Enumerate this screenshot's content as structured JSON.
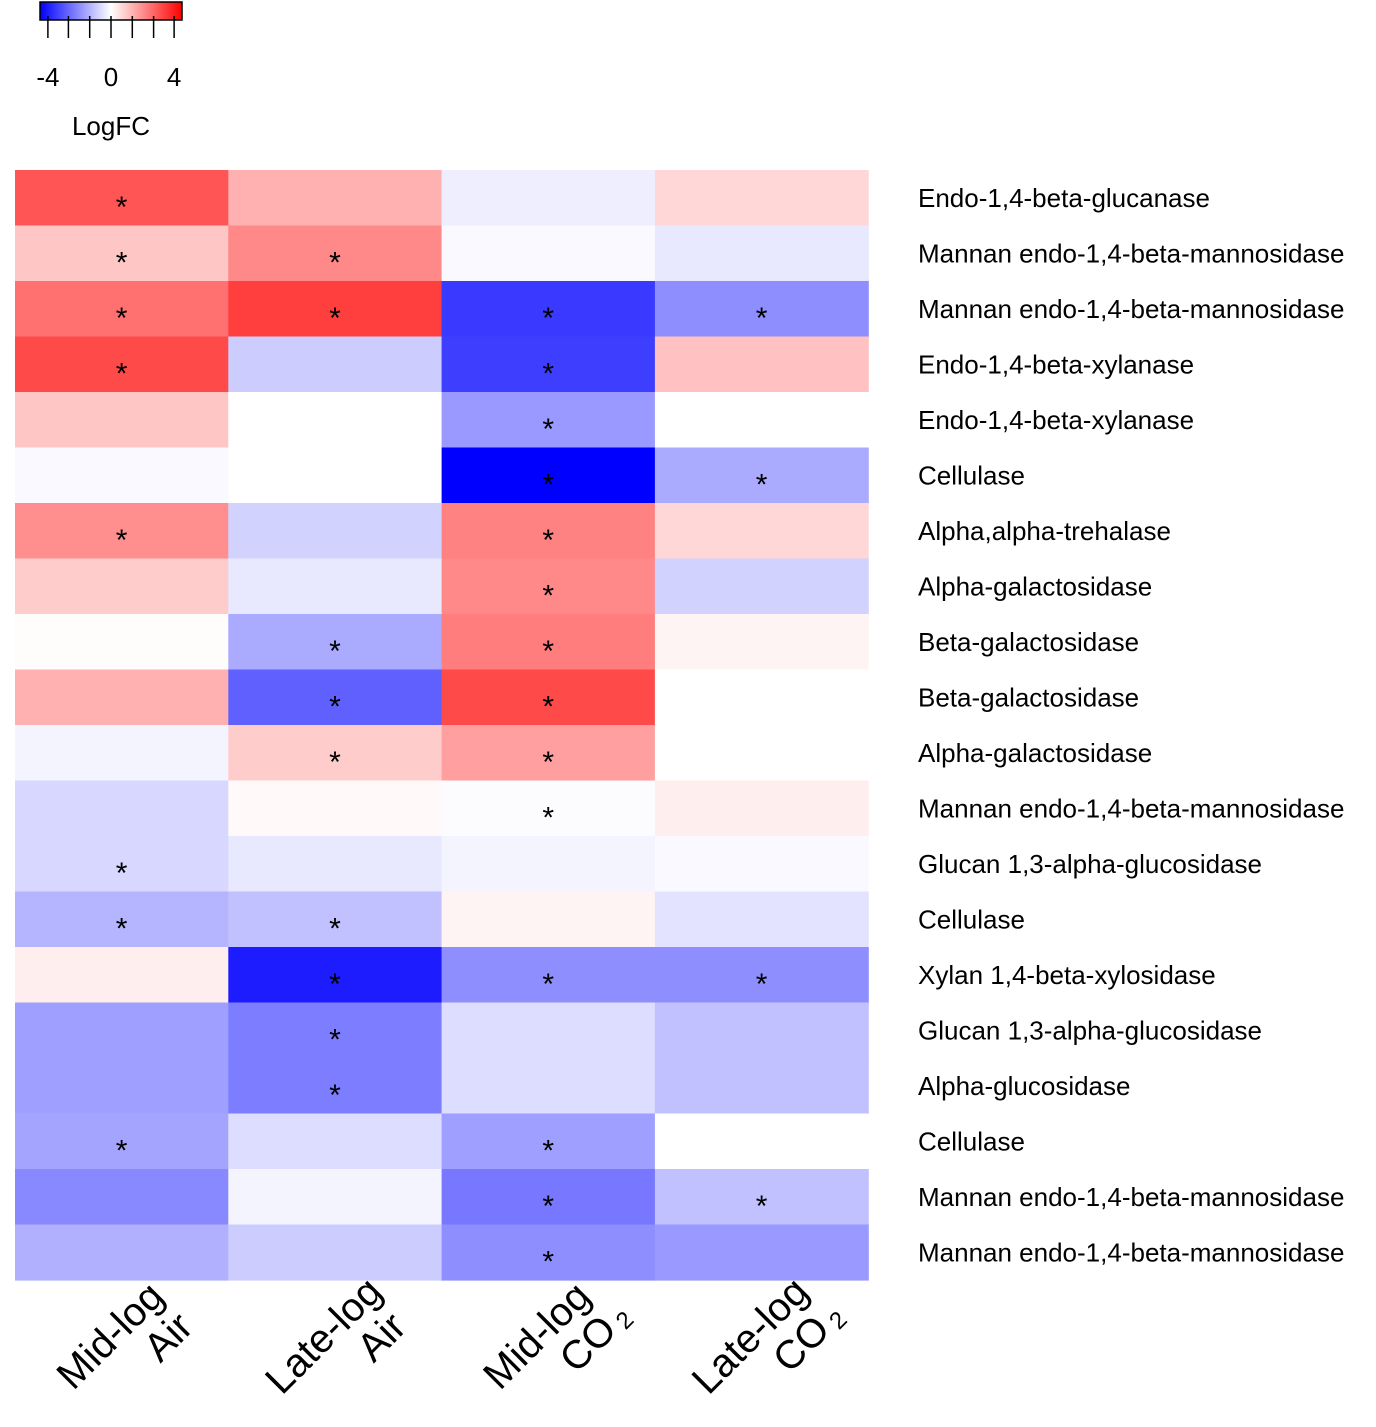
{
  "chart_data": {
    "type": "heatmap",
    "title": "",
    "legend": {
      "title": "LogFC",
      "ticks": [
        -4,
        0,
        4
      ],
      "tick_labels": [
        "-4",
        "0",
        "4"
      ],
      "range": [
        -4.5,
        4.5
      ],
      "colors": {
        "low": "#0000ff",
        "mid": "#ffffff",
        "high": "#ff0000"
      },
      "placement": "top-left"
    },
    "columns": [
      {
        "line1": "Mid-log",
        "line2": "Air",
        "sub": ""
      },
      {
        "line1": "Late-log",
        "line2": "Air",
        "sub": ""
      },
      {
        "line1": "Mid-log",
        "line2": "CO",
        "sub": "2"
      },
      {
        "line1": "Late-log",
        "line2": "CO",
        "sub": "2"
      }
    ],
    "rows": [
      "Endo-1,4-beta-glucanase",
      "Mannan endo-1,4-beta-mannosidase",
      "Mannan endo-1,4-beta-mannosidase",
      "Endo-1,4-beta-xylanase",
      "Endo-1,4-beta-xylanase",
      "Cellulase",
      "Alpha,alpha-trehalase",
      "Alpha-galactosidase",
      "Beta-galactosidase",
      "Beta-galactosidase",
      "Alpha-galactosidase",
      "Mannan endo-1,4-beta-mannosidase",
      "Glucan 1,3-alpha-glucosidase",
      "Cellulase",
      "Xylan 1,4-beta-xylosidase",
      "Glucan 1,3-alpha-glucosidase",
      "Alpha-glucosidase",
      "Cellulase",
      "Mannan endo-1,4-beta-mannosidase",
      "Mannan endo-1,4-beta-mannosidase"
    ],
    "values": [
      [
        3.0,
        1.4,
        -0.3,
        0.7
      ],
      [
        1.0,
        2.1,
        -0.1,
        -0.4
      ],
      [
        2.5,
        3.4,
        -3.5,
        -2.0
      ],
      [
        3.2,
        -0.9,
        -3.4,
        1.1
      ],
      [
        1.0,
        0.0,
        -1.8,
        0.0
      ],
      [
        -0.1,
        0.0,
        -4.5,
        -1.5
      ],
      [
        2.0,
        -0.8,
        2.2,
        0.7
      ],
      [
        0.9,
        -0.4,
        2.1,
        -0.8
      ],
      [
        0.05,
        -1.5,
        2.3,
        0.2
      ],
      [
        1.4,
        -2.8,
        3.2,
        0.0
      ],
      [
        -0.2,
        0.9,
        1.7,
        0.0
      ],
      [
        -0.7,
        0.1,
        -0.05,
        0.3
      ],
      [
        -0.7,
        -0.4,
        -0.2,
        -0.1
      ],
      [
        -1.3,
        -1.1,
        0.2,
        -0.5
      ],
      [
        0.3,
        -4.0,
        -2.0,
        -2.0
      ],
      [
        -1.7,
        -2.3,
        -0.6,
        -1.1
      ],
      [
        -1.7,
        -2.3,
        -0.6,
        -1.1
      ],
      [
        -1.6,
        -0.6,
        -1.7,
        0.0
      ],
      [
        -2.1,
        -0.2,
        -2.4,
        -1.1
      ],
      [
        -1.4,
        -0.9,
        -2.0,
        -1.8
      ]
    ],
    "significant": [
      [
        true,
        false,
        false,
        false
      ],
      [
        true,
        true,
        false,
        false
      ],
      [
        true,
        true,
        true,
        true
      ],
      [
        true,
        false,
        true,
        false
      ],
      [
        false,
        false,
        true,
        false
      ],
      [
        false,
        false,
        true,
        true
      ],
      [
        true,
        false,
        true,
        false
      ],
      [
        false,
        false,
        true,
        false
      ],
      [
        false,
        true,
        true,
        false
      ],
      [
        false,
        true,
        true,
        false
      ],
      [
        false,
        true,
        true,
        false
      ],
      [
        false,
        false,
        true,
        false
      ],
      [
        true,
        false,
        false,
        false
      ],
      [
        true,
        true,
        false,
        false
      ],
      [
        false,
        true,
        true,
        true
      ],
      [
        false,
        true,
        false,
        false
      ],
      [
        false,
        true,
        false,
        false
      ],
      [
        true,
        false,
        true,
        false
      ],
      [
        false,
        false,
        true,
        true
      ],
      [
        false,
        false,
        true,
        false
      ]
    ],
    "significance_marker": "*"
  }
}
